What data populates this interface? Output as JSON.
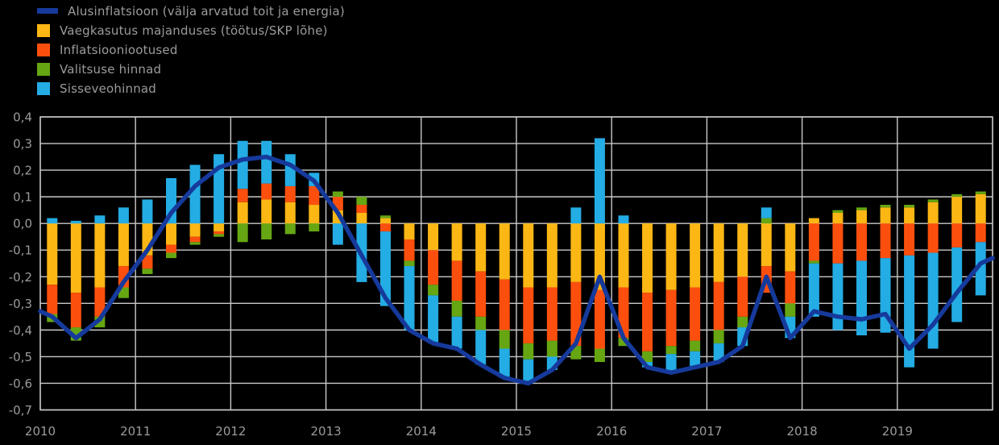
{
  "background_color": "#000000",
  "grid_color": "#c9c9c9",
  "text_color": "#9b9b9b",
  "chart_data": {
    "type": "bar",
    "stacked": true,
    "overlay_line": true,
    "grid": true,
    "legend_position": "top-left",
    "title": "",
    "xlabel": "",
    "ylabel": "",
    "ylim": [
      -0.7,
      0.4
    ],
    "y_tick_step": 0.1,
    "y_tick_labels": [
      "0,4",
      "0,3",
      "0,2",
      "0,1",
      "0,0",
      "-0,1",
      "-0,2",
      "-0,3",
      "-0,4",
      "-0,5",
      "-0,6",
      "-0,7"
    ],
    "x_tick_labels": [
      "2010",
      "2011",
      "2012",
      "2013",
      "2014",
      "2015",
      "2016",
      "2017",
      "2018",
      "2019"
    ],
    "categories": [
      "2010Q1",
      "2010Q2",
      "2010Q3",
      "2010Q4",
      "2011Q1",
      "2011Q2",
      "2011Q3",
      "2011Q4",
      "2012Q1",
      "2012Q2",
      "2012Q3",
      "2012Q4",
      "2013Q1",
      "2013Q2",
      "2013Q3",
      "2013Q4",
      "2014Q1",
      "2014Q2",
      "2014Q3",
      "2014Q4",
      "2015Q1",
      "2015Q2",
      "2015Q3",
      "2015Q4",
      "2016Q1",
      "2016Q2",
      "2016Q3",
      "2016Q4",
      "2017Q1",
      "2017Q2",
      "2017Q3",
      "2017Q4",
      "2018Q1",
      "2018Q2",
      "2018Q3",
      "2018Q4",
      "2019Q1",
      "2019Q2",
      "2019Q3",
      "2019Q4"
    ],
    "series": [
      {
        "name": "Alusinflatsioon (välja arvatud toit ja energia)",
        "type": "line",
        "color": "#163a9c",
        "values": [
          -0.35,
          -0.43,
          -0.36,
          -0.22,
          -0.1,
          0.04,
          0.14,
          0.21,
          0.24,
          0.25,
          0.22,
          0.16,
          0.04,
          -0.12,
          -0.28,
          -0.4,
          -0.45,
          -0.47,
          -0.53,
          -0.58,
          -0.6,
          -0.55,
          -0.45,
          -0.2,
          -0.43,
          -0.54,
          -0.56,
          -0.54,
          -0.52,
          -0.46,
          -0.2,
          -0.43,
          -0.33,
          -0.35,
          -0.36,
          -0.34,
          -0.47,
          -0.38,
          -0.26,
          -0.15
        ]
      },
      {
        "name": "Vaegkasutus majanduses (töötus/SKP lõhe)",
        "type": "bar",
        "color": "#fdb714",
        "values": [
          -0.23,
          -0.26,
          -0.24,
          -0.16,
          -0.12,
          -0.08,
          -0.05,
          -0.03,
          0.08,
          0.09,
          0.08,
          0.07,
          0.05,
          0.04,
          0.02,
          -0.06,
          -0.1,
          -0.14,
          -0.18,
          -0.21,
          -0.24,
          -0.24,
          -0.22,
          -0.25,
          -0.24,
          -0.26,
          -0.25,
          -0.24,
          -0.22,
          -0.2,
          -0.16,
          -0.18,
          0.02,
          0.04,
          0.05,
          0.06,
          0.06,
          0.08,
          0.1,
          0.11
        ]
      },
      {
        "name": "Inflatsiooniootused",
        "type": "bar",
        "color": "#fc4f0e",
        "values": [
          -0.11,
          -0.13,
          -0.11,
          -0.08,
          -0.05,
          -0.03,
          -0.02,
          -0.01,
          0.05,
          0.06,
          0.06,
          0.07,
          0.05,
          0.03,
          -0.03,
          -0.08,
          -0.13,
          -0.15,
          -0.17,
          -0.19,
          -0.21,
          -0.2,
          -0.24,
          -0.22,
          -0.19,
          -0.22,
          -0.21,
          -0.2,
          -0.18,
          -0.15,
          -0.1,
          -0.12,
          -0.14,
          -0.15,
          -0.14,
          -0.13,
          -0.12,
          -0.11,
          -0.09,
          -0.07
        ]
      },
      {
        "name": "Valitsuse hinnad",
        "type": "bar",
        "color": "#66a613",
        "values": [
          -0.03,
          -0.05,
          -0.04,
          -0.04,
          -0.02,
          -0.02,
          -0.01,
          -0.01,
          -0.07,
          -0.06,
          -0.04,
          -0.03,
          0.02,
          0.03,
          0.01,
          -0.02,
          -0.04,
          -0.06,
          -0.05,
          -0.07,
          -0.06,
          -0.06,
          -0.05,
          -0.05,
          -0.03,
          -0.04,
          -0.03,
          -0.04,
          -0.05,
          -0.04,
          0.02,
          -0.05,
          -0.01,
          0.01,
          0.01,
          0.01,
          0.01,
          0.01,
          0.01,
          0.01
        ]
      },
      {
        "name": "Sisseveohinnad",
        "type": "bar",
        "color": "#24ace4",
        "values": [
          0.02,
          0.01,
          0.03,
          0.06,
          0.09,
          0.17,
          0.22,
          0.26,
          0.18,
          0.16,
          0.12,
          0.05,
          -0.08,
          -0.22,
          -0.28,
          -0.24,
          -0.18,
          -0.12,
          -0.13,
          -0.11,
          -0.09,
          -0.05,
          0.06,
          0.32,
          0.03,
          -0.02,
          -0.07,
          -0.06,
          -0.07,
          -0.07,
          0.04,
          -0.08,
          -0.2,
          -0.25,
          -0.28,
          -0.28,
          -0.42,
          -0.36,
          -0.28,
          -0.2
        ]
      }
    ]
  }
}
